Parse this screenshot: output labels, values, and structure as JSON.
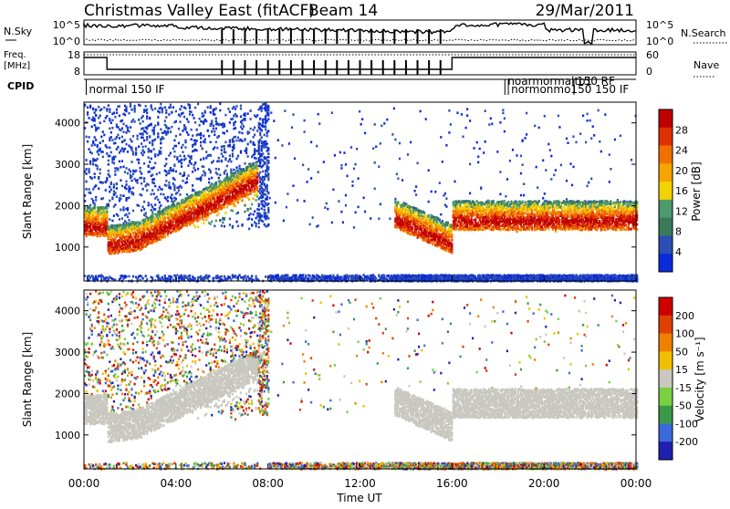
{
  "header": {
    "title": "Christmas Valley East (fitACF)",
    "beam": "Beam 14",
    "date": "29/Mar/2011"
  },
  "sky_panel": {
    "left_label": "N.Sky",
    "right_label": "N.Search",
    "left_ticks": [
      "10^5",
      "10^0"
    ],
    "right_ticks": [
      "10^5",
      "10^0"
    ]
  },
  "freq_panel": {
    "left_label_line1": "Freq.",
    "left_label_line2": "[MHz]",
    "right_label": "Nave",
    "left_ticks": [
      "18",
      "8"
    ],
    "right_ticks": [
      "60",
      "0"
    ]
  },
  "cpid": {
    "label": "CPID",
    "segments": [
      {
        "x_hour": 0.1,
        "text": "normal 150 IF"
      },
      {
        "x_hour": 18.45,
        "text": "normonmo150 150 IF"
      },
      {
        "x_hour": 18.3,
        "text": "noarmormalto1"
      },
      {
        "x_hour": 21.3,
        "text": "150 RF"
      }
    ]
  },
  "colors": {
    "power": [
      "#0a2bd9",
      "#2c4fb5",
      "#3a7a5a",
      "#4d9a6e",
      "#f2d200",
      "#f5a400",
      "#f07000",
      "#e03000",
      "#c00000"
    ],
    "velocity": [
      "#2020b0",
      "#3a6ad9",
      "#3a9a4a",
      "#7ad040",
      "#c8c8c0",
      "#f0c000",
      "#f08000",
      "#e04000",
      "#d00000"
    ]
  },
  "chart_data": [
    {
      "type": "heatmap",
      "name": "power",
      "xlabel": "",
      "ylabel": "Slant Range [km]",
      "xlim": [
        0,
        24
      ],
      "ylim": [
        180,
        4500
      ],
      "y_ticks": [
        1000,
        2000,
        3000,
        4000
      ],
      "colorbar_label": "Power [dB]",
      "colorbar_ticks": [
        "4",
        "8",
        "12",
        "16",
        "20",
        "24",
        "28"
      ],
      "colorbar_range": [
        0,
        30
      ]
    },
    {
      "type": "heatmap",
      "name": "velocity",
      "xlabel": "Time UT",
      "ylabel": "Slant Range [km]",
      "xlim": [
        0,
        24
      ],
      "ylim": [
        180,
        4500
      ],
      "x_ticks": [
        "00:00",
        "04:00",
        "08:00",
        "12:00",
        "16:00",
        "20:00",
        "00:00"
      ],
      "y_ticks": [
        1000,
        2000,
        3000,
        4000
      ],
      "colorbar_label": "Velocity [m s⁻¹]",
      "colorbar_ticks": [
        "-200",
        "-100",
        "-50",
        "-15",
        "15",
        "50",
        "100",
        "200"
      ],
      "colorbar_range": [
        -250,
        250
      ]
    }
  ]
}
